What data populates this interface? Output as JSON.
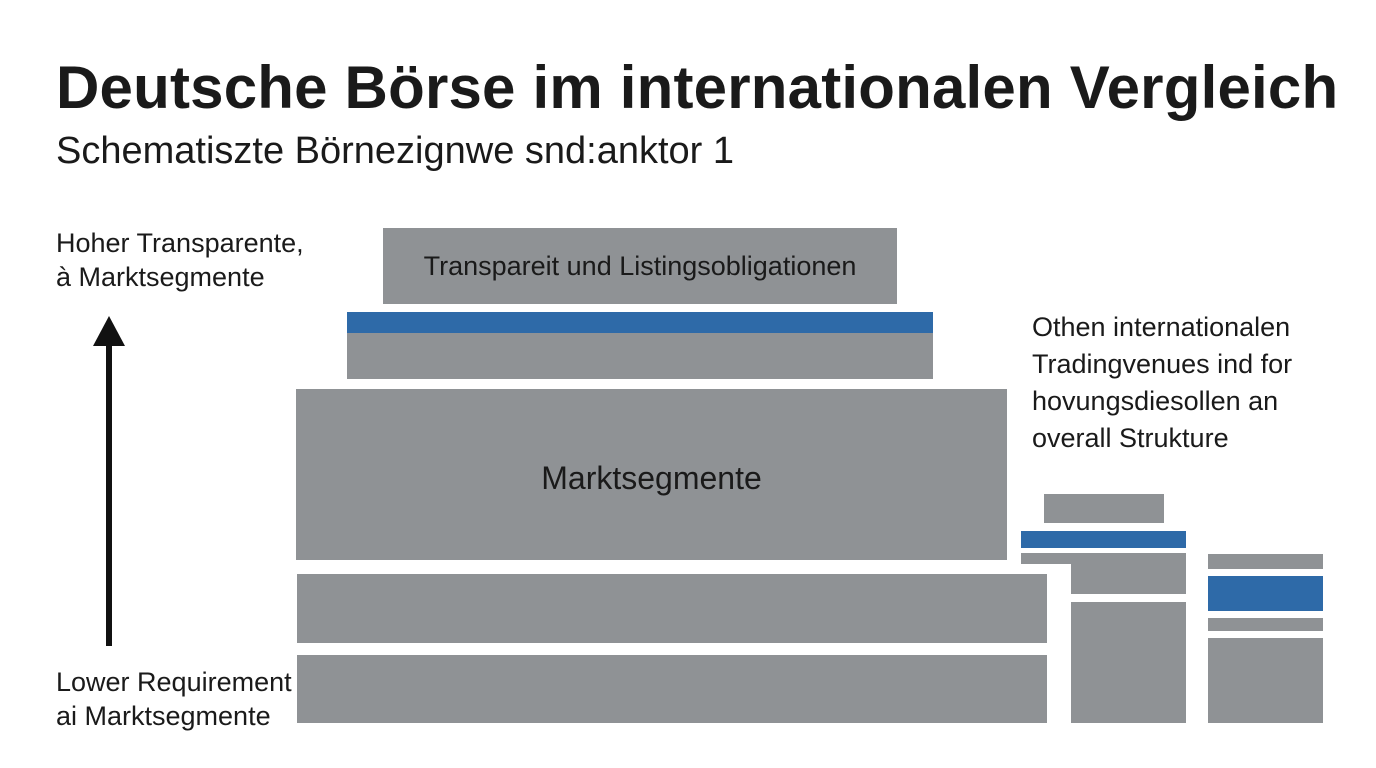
{
  "header": {
    "title": "Deutsche Börse im internationalen Vergleich",
    "subtitle": "Schematiszte Börnezignwe snd:anktor 1"
  },
  "axis": {
    "top_label": [
      "Hoher Transparente,",
      "à Marktsegmente"
    ],
    "bottom_label": [
      "Lower Requirement",
      "ai Marktsegmente"
    ]
  },
  "pyramid": {
    "top_layer_label": "Transpareit und Listingsobligationen",
    "middle_layer_label": "Marktsegmente"
  },
  "other_venues": {
    "label": [
      "Othen internationalen",
      "Tradingvenues ind for",
      "hovungsdiesollen an",
      "overall Strukture"
    ]
  },
  "colors": {
    "block_gray": "#8f9295",
    "accent_blue": "#2e6aa8",
    "text": "#1a1a1a",
    "arrow": "#111111"
  },
  "icons": {
    "arrow": "arrow-up-icon"
  }
}
